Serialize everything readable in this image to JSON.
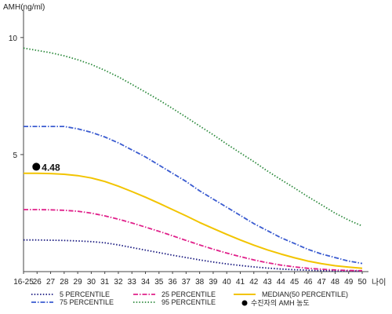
{
  "chart_data": {
    "type": "line",
    "ylabel": "AMH(ng/ml)",
    "xlabel": "나이",
    "ylim": [
      0,
      11
    ],
    "y_ticks": [
      5,
      10
    ],
    "categories": [
      "16-25",
      "26",
      "27",
      "28",
      "29",
      "30",
      "31",
      "32",
      "33",
      "34",
      "35",
      "36",
      "37",
      "38",
      "39",
      "40",
      "41",
      "42",
      "43",
      "44",
      "45",
      "46",
      "47",
      "48",
      "49",
      "50"
    ],
    "series": [
      {
        "name": "5 PERCENTILE",
        "color": "#1a1a80",
        "style": "dotted",
        "values": [
          1.35,
          1.35,
          1.34,
          1.33,
          1.31,
          1.28,
          1.23,
          1.14,
          1.03,
          0.92,
          0.81,
          0.7,
          0.6,
          0.5,
          0.41,
          0.33,
          0.26,
          0.2,
          0.15,
          0.11,
          0.08,
          0.06,
          0.04,
          0.03,
          0.03,
          0.02
        ]
      },
      {
        "name": "75 PERCENTILE",
        "color": "#3a5bd0",
        "style": "dashdot",
        "values": [
          6.2,
          6.2,
          6.2,
          6.2,
          6.1,
          5.95,
          5.75,
          5.5,
          5.2,
          4.9,
          4.55,
          4.2,
          3.85,
          3.45,
          3.1,
          2.75,
          2.4,
          2.05,
          1.75,
          1.45,
          1.2,
          0.95,
          0.75,
          0.6,
          0.45,
          0.35
        ]
      },
      {
        "name": "25 PERCENTILE",
        "color": "#e0208a",
        "style": "dashdot",
        "values": [
          2.65,
          2.65,
          2.64,
          2.62,
          2.58,
          2.5,
          2.38,
          2.24,
          2.08,
          1.9,
          1.72,
          1.53,
          1.33,
          1.14,
          0.96,
          0.79,
          0.64,
          0.5,
          0.38,
          0.28,
          0.2,
          0.14,
          0.1,
          0.07,
          0.05,
          0.04
        ]
      },
      {
        "name": "95 PERCENTILE",
        "color": "#2e8b3e",
        "style": "dotted",
        "values": [
          9.55,
          9.45,
          9.35,
          9.22,
          9.05,
          8.85,
          8.6,
          8.32,
          8.0,
          7.67,
          7.33,
          6.97,
          6.6,
          6.22,
          5.85,
          5.45,
          5.07,
          4.7,
          4.3,
          3.93,
          3.57,
          3.2,
          2.85,
          2.5,
          2.2,
          1.95
        ]
      },
      {
        "name": "MEDIAN(50 PERCENTILE)",
        "color": "#f2c400",
        "style": "solid",
        "values": [
          4.2,
          4.2,
          4.19,
          4.16,
          4.1,
          4.0,
          3.85,
          3.65,
          3.42,
          3.18,
          2.92,
          2.65,
          2.38,
          2.1,
          1.84,
          1.59,
          1.35,
          1.13,
          0.93,
          0.75,
          0.59,
          0.45,
          0.34,
          0.25,
          0.19,
          0.14
        ]
      }
    ],
    "marker": {
      "name": "수진자의 AMH 농도",
      "x_index": 1,
      "value": 4.48,
      "label": "4.48",
      "color": "#000000"
    },
    "legend_position": "bottom",
    "grid": false
  }
}
